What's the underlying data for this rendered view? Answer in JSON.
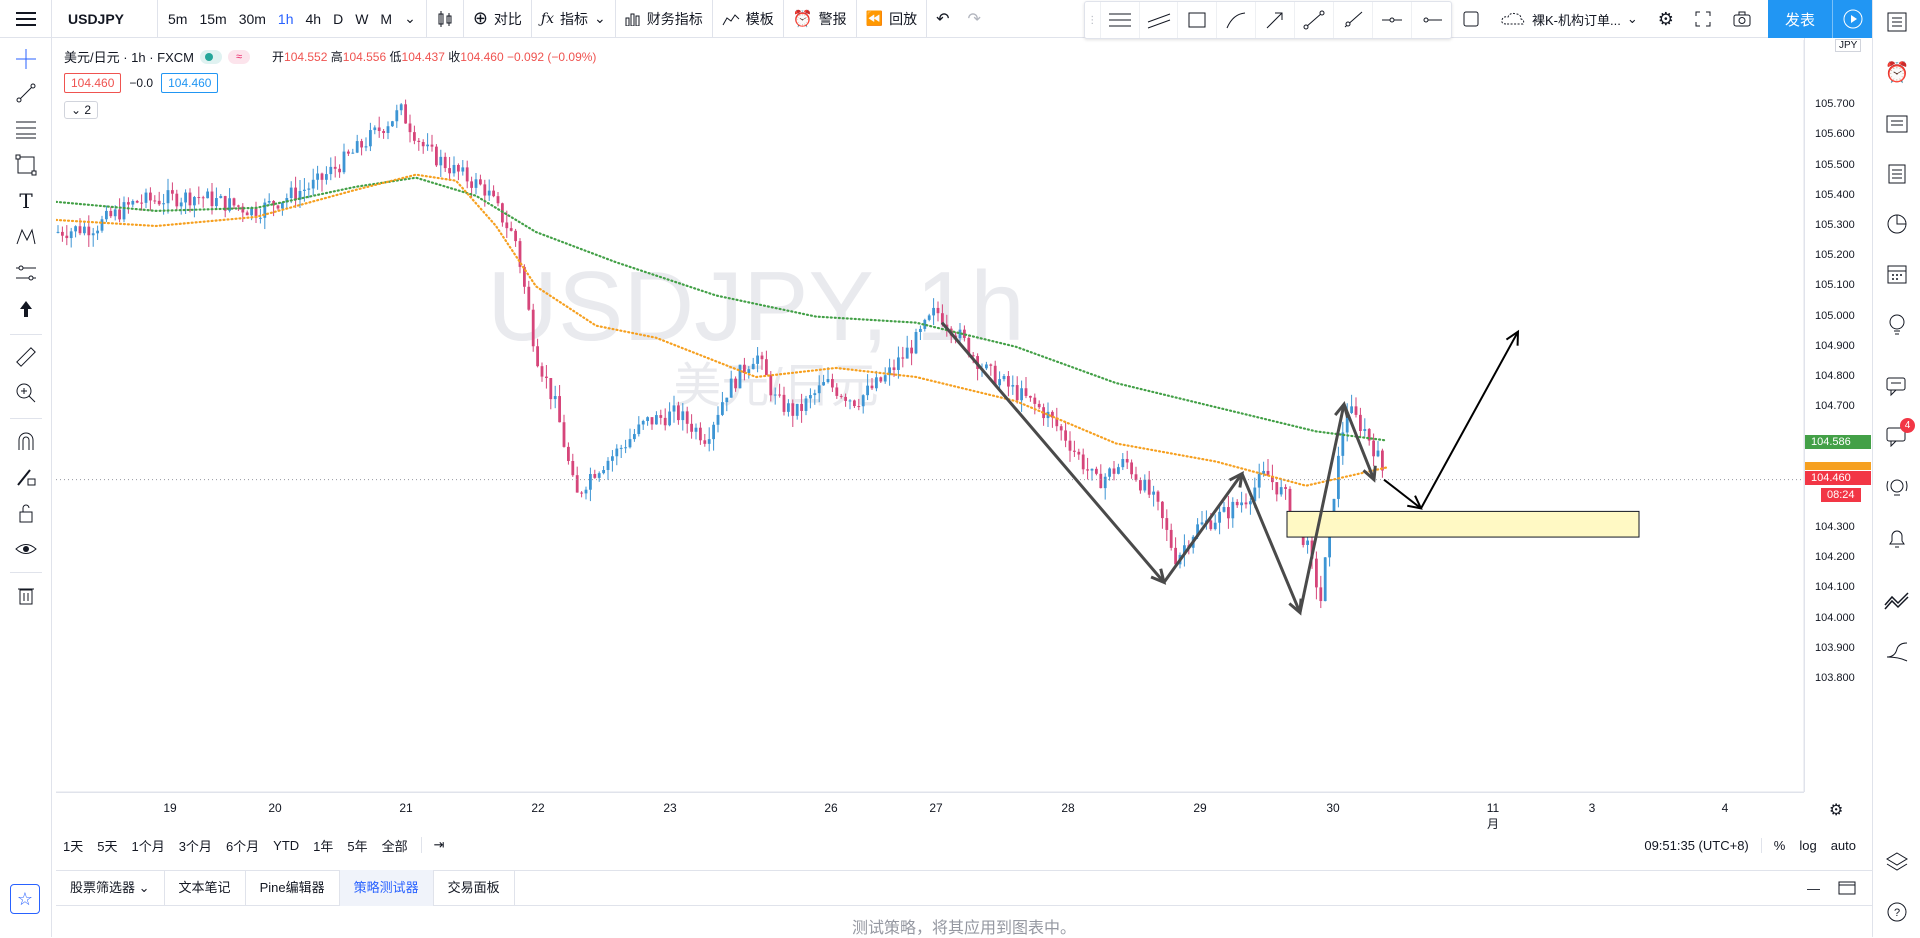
{
  "header": {
    "symbol": "USDJPY",
    "timeframes": [
      "5m",
      "15m",
      "30m",
      "1h",
      "4h",
      "D",
      "W",
      "M"
    ],
    "active_timeframe": "1h",
    "compare_label": "对比",
    "indicators_label": "指标",
    "financials_label": "财务指标",
    "templates_label": "模板",
    "alert_label": "警报",
    "replay_label": "回放",
    "layout_name": "裸K-机构订单...",
    "publish_label": "发表"
  },
  "legend": {
    "title": "美元/日元 · 1h · FXCM",
    "open_label": "开",
    "open": "104.552",
    "high_label": "高",
    "high": "104.556",
    "low_label": "低",
    "low": "104.437",
    "close_label": "收",
    "close": "104.460",
    "change": "−0.092 (−0.09%)",
    "sell_price": "104.460",
    "spread": "−0.0",
    "buy_price": "104.460",
    "collapsed_count": "2"
  },
  "watermark": {
    "symbol": "USDJPY, 1h",
    "name": "美元/日元"
  },
  "price_axis": {
    "currency": "JPY",
    "ticks": [
      "105.700",
      "105.600",
      "105.500",
      "105.400",
      "105.300",
      "105.200",
      "105.100",
      "105.000",
      "104.900",
      "104.800",
      "104.700",
      "104.300",
      "104.200",
      "104.100",
      "104.000",
      "103.900",
      "103.800"
    ],
    "ma_green_value": "104.586",
    "last_price": "104.460",
    "countdown": "08:24"
  },
  "time_axis": {
    "labels": [
      "19",
      "20",
      "21",
      "22",
      "23",
      "26",
      "27",
      "28",
      "29",
      "30",
      "11月",
      "3",
      "4"
    ]
  },
  "bottom_bar": {
    "ranges": [
      "1天",
      "5天",
      "1个月",
      "3个月",
      "6个月",
      "YTD",
      "1年",
      "5年",
      "全部"
    ],
    "clock": "09:51:35 (UTC+8)",
    "percent": "%",
    "log": "log",
    "auto": "auto"
  },
  "panel": {
    "tabs": [
      "股票筛选器",
      "文本笔记",
      "Pine编辑器",
      "策略测试器",
      "交易面板"
    ],
    "active_tab": "策略测试器",
    "message": "测试策略，将其应用到图表中。"
  },
  "colors": {
    "up": "#26a69a",
    "up_candle": "#3d95d4",
    "down_candle": "#d6457a",
    "ma_green": "#43a047",
    "ma_orange": "#f6a020",
    "accent": "#2962ff",
    "highlight_box": "#fff9c4"
  },
  "right_toolbar": {
    "notification_count": "4"
  }
}
